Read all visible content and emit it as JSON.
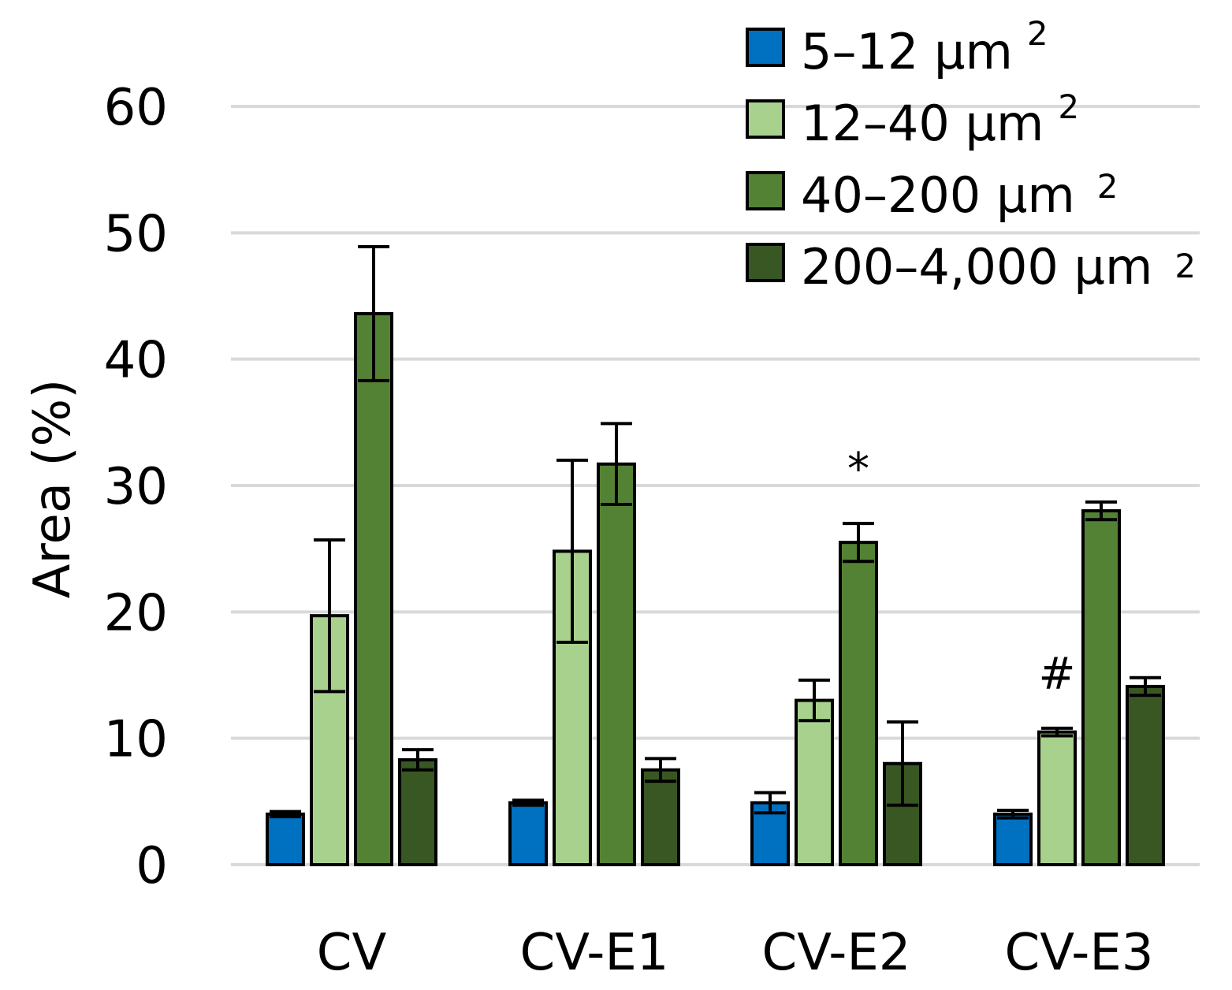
{
  "chart_data": {
    "type": "bar",
    "title": "",
    "xlabel": "",
    "ylabel": "Area (%)",
    "ylim": [
      0,
      60
    ],
    "yticks": [
      0,
      10,
      20,
      30,
      40,
      50,
      60
    ],
    "grid": true,
    "legend_position": "top-right",
    "categories": [
      "CV",
      "CV-E1",
      "CV-E2",
      "CV-E3"
    ],
    "series": [
      {
        "name": "5–12 µm",
        "unit_sup": "2",
        "color": "#0070C0",
        "values": [
          4.0,
          4.9,
          4.9,
          4.0
        ],
        "errors": [
          0.2,
          0.2,
          0.8,
          0.3
        ]
      },
      {
        "name": "12–40 µm",
        "unit_sup": "2",
        "color": "#A9D18E",
        "values": [
          19.7,
          24.8,
          13.0,
          10.5
        ],
        "errors": [
          6.0,
          7.2,
          1.6,
          0.3
        ]
      },
      {
        "name": "40–200 µm",
        "unit_sup": "2",
        "color": "#548235",
        "values": [
          43.6,
          31.7,
          25.5,
          28.0
        ],
        "errors": [
          5.3,
          3.2,
          1.5,
          0.7
        ]
      },
      {
        "name": "200–4,000 µm",
        "unit_sup": "2",
        "color": "#385723",
        "values": [
          8.3,
          7.5,
          8.0,
          14.1
        ],
        "errors": [
          0.8,
          0.9,
          3.3,
          0.7
        ]
      }
    ],
    "annotations": [
      {
        "text": "*",
        "category": "CV-E2",
        "series": "40–200 µm"
      },
      {
        "text": "#",
        "category": "CV-E3",
        "series": "12–40 µm"
      }
    ]
  }
}
